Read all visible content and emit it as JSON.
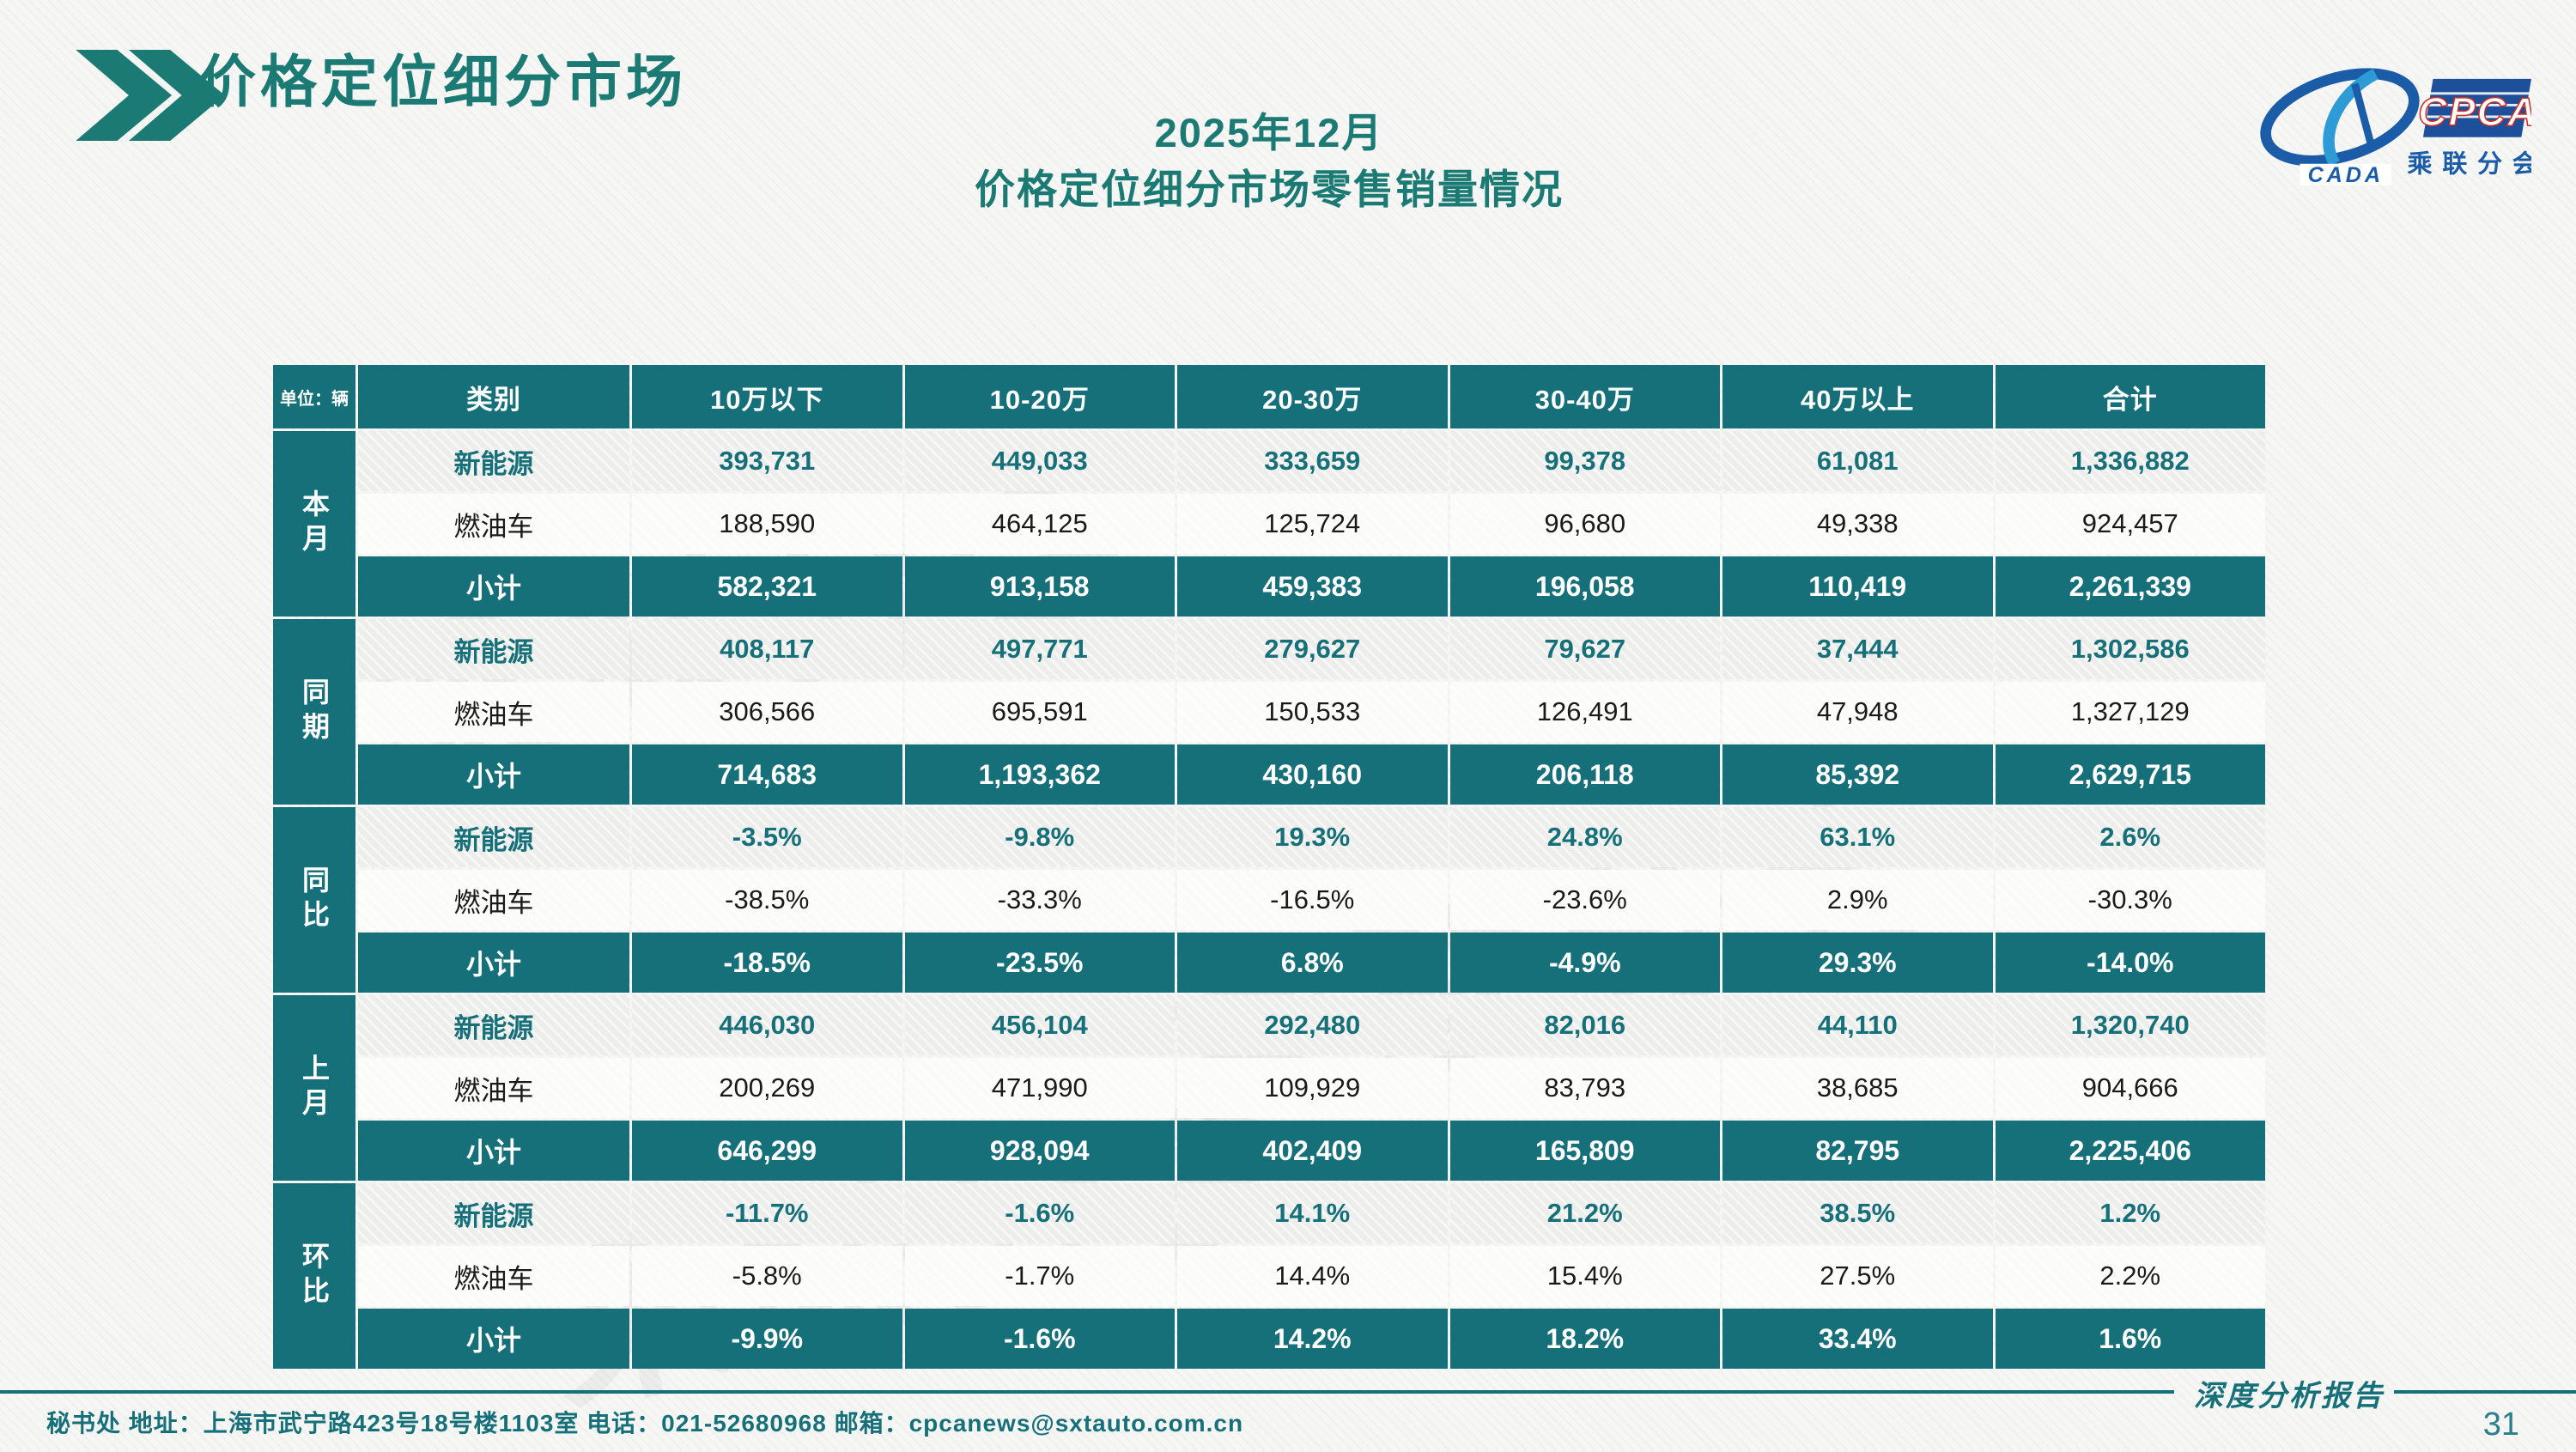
{
  "slide": {
    "title": "价格定位细分市场",
    "subtitle_line1": "2025年12月",
    "subtitle_line2": "价格定位细分市场零售销量情况",
    "footer_address": "秘书处   地址：上海市武宁路423号18号楼1103室  电话：021-52680968   邮箱：cpcanews@sxtauto.com.cn",
    "footer_report_type": "深度分析报告",
    "page_number": "31"
  },
  "logo": {
    "cpca": "CPCA",
    "branch": "乘联分会",
    "cada": "CADA"
  },
  "colors": {
    "table_teal": "#16707A",
    "title_teal": "#1B7B74",
    "logo_blue": "#1A5CA8",
    "logo_red": "#D42B1E"
  },
  "watermark_text": "乘联分会",
  "table": {
    "unit_label": "单位：辆",
    "columns": [
      "类别",
      "10万以下",
      "10-20万",
      "20-30万",
      "30-40万",
      "40万以上",
      "合计"
    ],
    "row_groups": [
      {
        "label": "本月",
        "rows": [
          {
            "category": "新能源",
            "type": "ne",
            "values": [
              "393,731",
              "449,033",
              "333,659",
              "99,378",
              "61,081",
              "1,336,882"
            ]
          },
          {
            "category": "燃油车",
            "type": "fuel",
            "values": [
              "188,590",
              "464,125",
              "125,724",
              "96,680",
              "49,338",
              "924,457"
            ]
          },
          {
            "category": "小计",
            "type": "subtotal",
            "values": [
              "582,321",
              "913,158",
              "459,383",
              "196,058",
              "110,419",
              "2,261,339"
            ]
          }
        ]
      },
      {
        "label": "同期",
        "rows": [
          {
            "category": "新能源",
            "type": "ne",
            "values": [
              "408,117",
              "497,771",
              "279,627",
              "79,627",
              "37,444",
              "1,302,586"
            ]
          },
          {
            "category": "燃油车",
            "type": "fuel",
            "values": [
              "306,566",
              "695,591",
              "150,533",
              "126,491",
              "47,948",
              "1,327,129"
            ]
          },
          {
            "category": "小计",
            "type": "subtotal",
            "values": [
              "714,683",
              "1,193,362",
              "430,160",
              "206,118",
              "85,392",
              "2,629,715"
            ]
          }
        ]
      },
      {
        "label": "同比",
        "rows": [
          {
            "category": "新能源",
            "type": "ne",
            "values": [
              "-3.5%",
              "-9.8%",
              "19.3%",
              "24.8%",
              "63.1%",
              "2.6%"
            ]
          },
          {
            "category": "燃油车",
            "type": "fuel",
            "values": [
              "-38.5%",
              "-33.3%",
              "-16.5%",
              "-23.6%",
              "2.9%",
              "-30.3%"
            ]
          },
          {
            "category": "小计",
            "type": "subtotal",
            "values": [
              "-18.5%",
              "-23.5%",
              "6.8%",
              "-4.9%",
              "29.3%",
              "-14.0%"
            ]
          }
        ]
      },
      {
        "label": "上月",
        "rows": [
          {
            "category": "新能源",
            "type": "ne",
            "values": [
              "446,030",
              "456,104",
              "292,480",
              "82,016",
              "44,110",
              "1,320,740"
            ]
          },
          {
            "category": "燃油车",
            "type": "fuel",
            "values": [
              "200,269",
              "471,990",
              "109,929",
              "83,793",
              "38,685",
              "904,666"
            ]
          },
          {
            "category": "小计",
            "type": "subtotal",
            "values": [
              "646,299",
              "928,094",
              "402,409",
              "165,809",
              "82,795",
              "2,225,406"
            ]
          }
        ]
      },
      {
        "label": "环比",
        "rows": [
          {
            "category": "新能源",
            "type": "ne",
            "values": [
              "-11.7%",
              "-1.6%",
              "14.1%",
              "21.2%",
              "38.5%",
              "1.2%"
            ]
          },
          {
            "category": "燃油车",
            "type": "fuel",
            "values": [
              "-5.8%",
              "-1.7%",
              "14.4%",
              "15.4%",
              "27.5%",
              "2.2%"
            ]
          },
          {
            "category": "小计",
            "type": "subtotal",
            "values": [
              "-9.9%",
              "-1.6%",
              "14.2%",
              "18.2%",
              "33.4%",
              "1.6%"
            ]
          }
        ]
      }
    ]
  }
}
